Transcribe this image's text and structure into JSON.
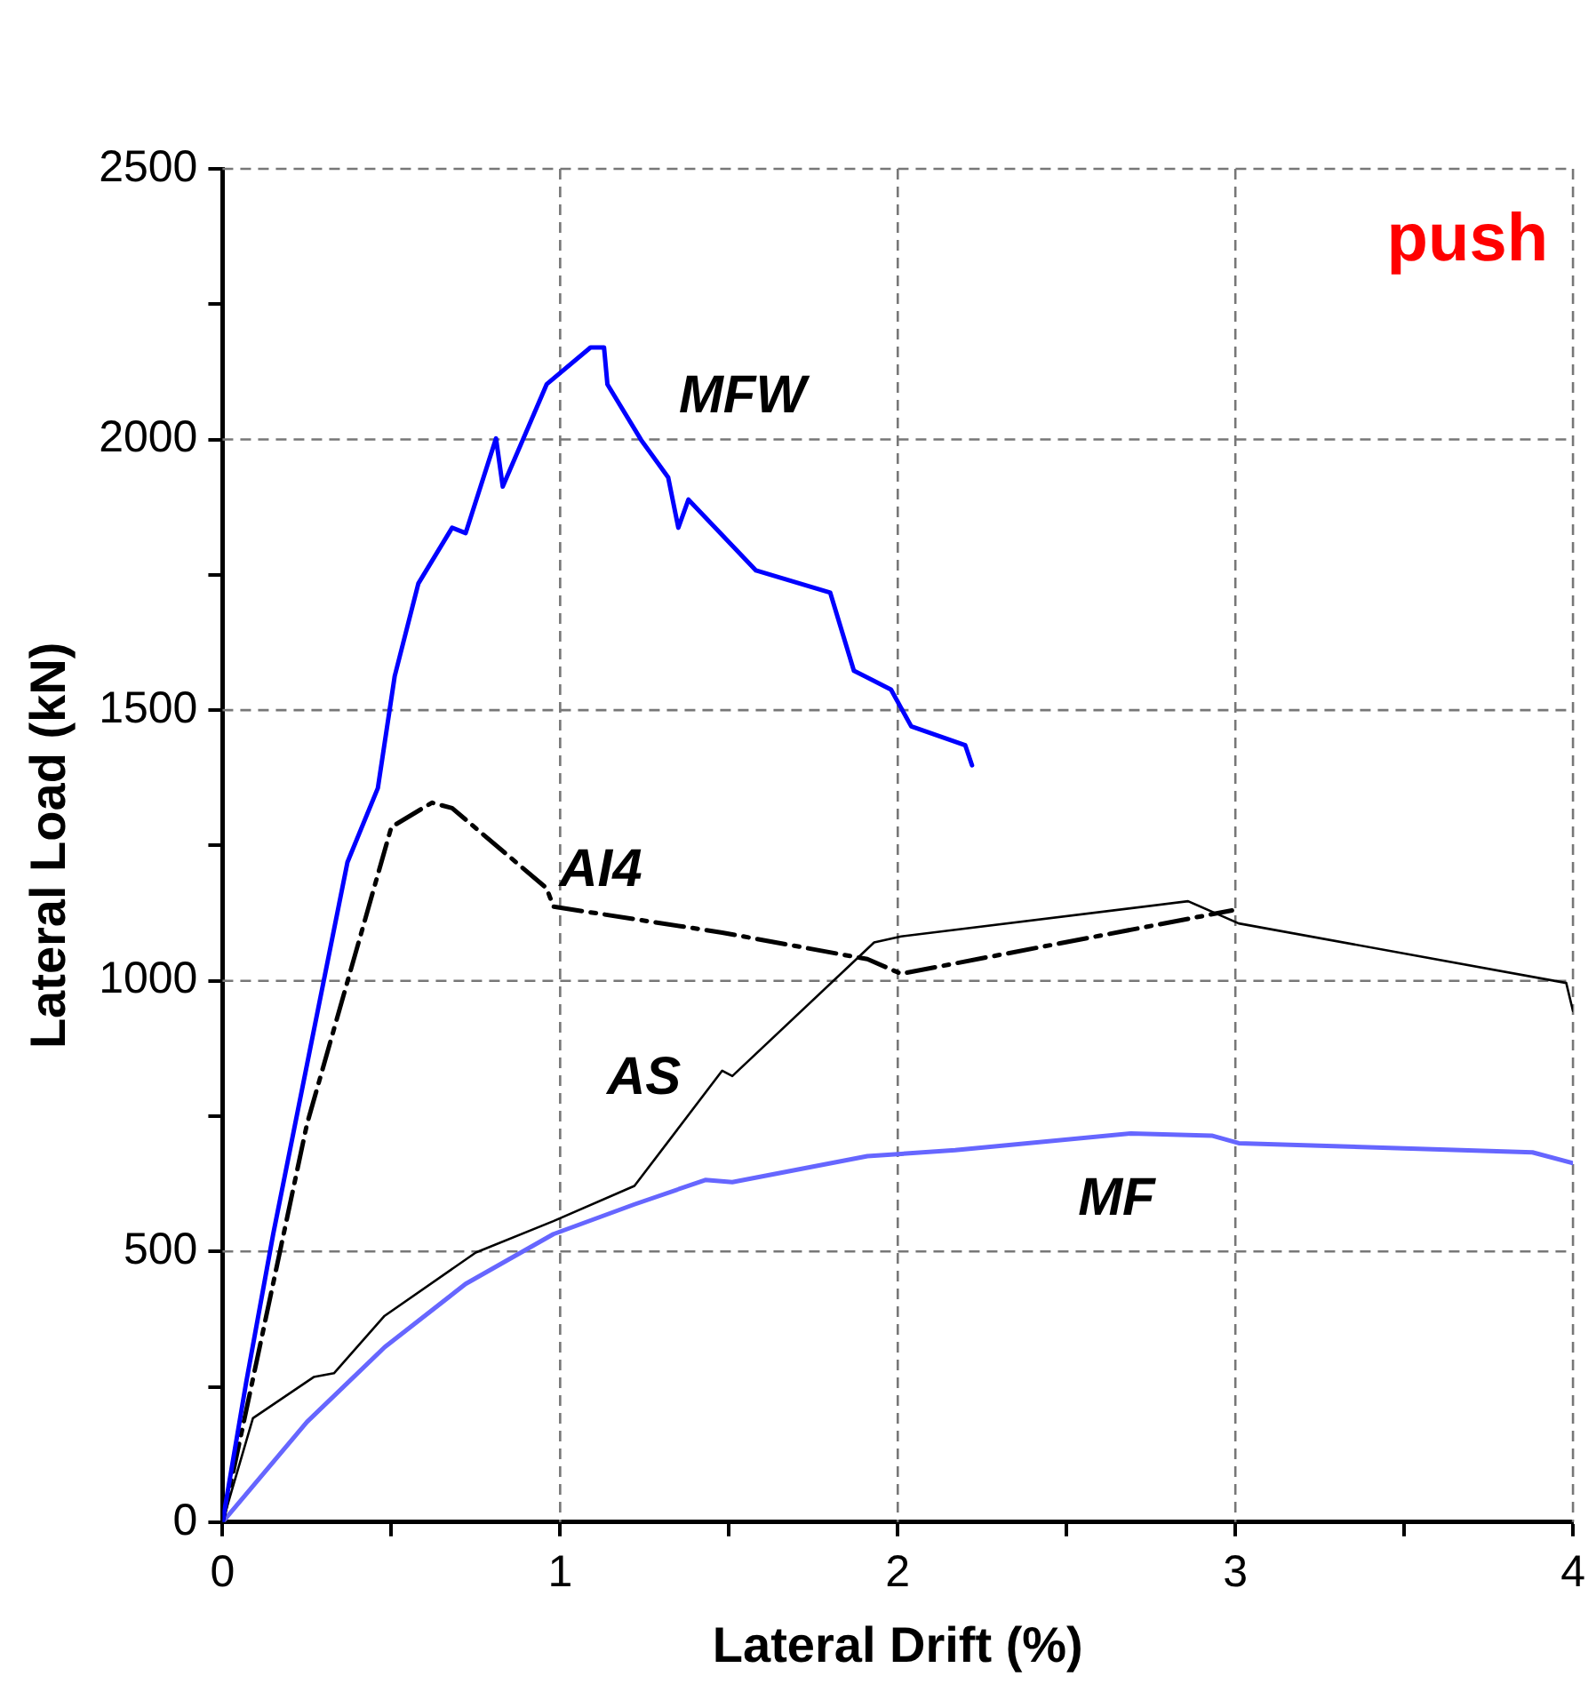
{
  "chart_data": {
    "type": "line",
    "xlabel": "Lateral Drift (%)",
    "ylabel": "Lateral Load (kN)",
    "xlim": [
      0,
      4
    ],
    "ylim": [
      0,
      2500
    ],
    "xticks": [
      0,
      {
        "value": 0.5,
        "label": null
      },
      1,
      {
        "value": 1.5,
        "label": null
      },
      2,
      {
        "value": 2.5,
        "label": null
      },
      3,
      {
        "value": 3.5,
        "label": null
      },
      4
    ],
    "yticks": [
      0,
      {
        "value": 250,
        "label": null
      },
      500,
      {
        "value": 750,
        "label": null
      },
      1000,
      {
        "value": 1250,
        "label": null
      },
      1500,
      {
        "value": 1750,
        "label": null
      },
      2000,
      {
        "value": 2250,
        "label": null
      },
      2500
    ],
    "grid": true,
    "legend": false,
    "marker": "none",
    "series": [
      {
        "name": "MFW",
        "color": "#0000ff",
        "line_style": "solid",
        "x": [
          0,
          0.07,
          0.15,
          0.26,
          0.37,
          0.46,
          0.51,
          0.58,
          0.68,
          0.72,
          0.81,
          0.83,
          0.96,
          1.09,
          1.13,
          1.14,
          1.24,
          1.32,
          1.35,
          1.38,
          1.58,
          1.8,
          1.87,
          1.98,
          2.04,
          2.2,
          2.22
        ],
        "values": [
          0,
          258,
          532,
          876,
          1219,
          1356,
          1563,
          1734,
          1837,
          1827,
          2002,
          1913,
          2102,
          2170,
          2170,
          2102,
          1999,
          1930,
          1837,
          1889,
          1758,
          1717,
          1573,
          1538,
          1470,
          1435,
          1398
        ]
      },
      {
        "name": "AI4",
        "color": "#000000",
        "line_style": "dashed",
        "x": [
          0,
          0.25,
          0.5,
          0.62,
          0.68,
          0.96,
          0.98,
          1.48,
          1.91,
          2.01,
          2.99
        ],
        "values": [
          0,
          735,
          1284,
          1329,
          1319,
          1171,
          1137,
          1089,
          1040,
          1013,
          1130
        ]
      },
      {
        "name": "AS",
        "color": "#000000",
        "line_style": "solid",
        "x": [
          0,
          0.09,
          0.27,
          0.33,
          0.48,
          0.75,
          0.98,
          1.22,
          1.48,
          1.51,
          1.93,
          2.01,
          2.86,
          3.01,
          3.98,
          4.0
        ],
        "values": [
          0,
          192,
          268,
          275,
          381,
          498,
          556,
          621,
          834,
          824,
          1071,
          1082,
          1147,
          1106,
          996,
          944
        ]
      },
      {
        "name": "MF",
        "color": "#6666ff",
        "line_style": "solid",
        "x": [
          0,
          0.25,
          0.48,
          0.72,
          0.98,
          1.22,
          1.43,
          1.51,
          1.91,
          2.17,
          2.69,
          2.93,
          3.01,
          3.88,
          4.0
        ],
        "values": [
          0,
          185,
          323,
          440,
          532,
          587,
          632,
          628,
          676,
          687,
          718,
          714,
          700,
          683,
          663
        ]
      }
    ],
    "annotations": [
      "push"
    ]
  }
}
